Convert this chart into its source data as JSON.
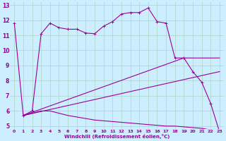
{
  "xlabel": "Windchill (Refroidissement éolien,°C)",
  "bg_color": "#cceeff",
  "grid_color": "#aaddcc",
  "line_color": "#990099",
  "xlim": [
    -0.5,
    23.5
  ],
  "ylim": [
    4.8,
    13.2
  ],
  "xticks": [
    0,
    1,
    2,
    3,
    4,
    5,
    6,
    7,
    8,
    9,
    10,
    11,
    12,
    13,
    14,
    15,
    16,
    17,
    18,
    19,
    20,
    21,
    22,
    23
  ],
  "yticks": [
    5,
    6,
    7,
    8,
    9,
    10,
    11,
    12,
    13
  ],
  "line1_x": [
    0,
    1,
    2,
    3,
    4,
    5,
    6,
    7,
    8,
    9,
    10,
    11,
    12,
    13,
    14,
    15,
    16,
    17,
    18,
    19,
    20,
    21,
    22,
    23
  ],
  "line1_y": [
    11.8,
    5.7,
    6.0,
    11.1,
    11.8,
    11.5,
    11.4,
    11.4,
    11.15,
    11.1,
    11.6,
    11.9,
    12.4,
    12.5,
    12.5,
    12.8,
    11.9,
    11.8,
    9.5,
    9.5,
    8.6,
    7.9,
    6.5,
    4.6
  ],
  "line2_x": [
    1,
    2,
    3,
    4,
    5,
    6,
    7,
    8,
    9,
    10,
    11,
    12,
    13,
    14,
    15,
    16,
    17,
    18,
    19,
    20,
    21,
    22,
    23
  ],
  "line2_y": [
    5.7,
    5.85,
    6.0,
    6.0,
    5.85,
    5.7,
    5.6,
    5.5,
    5.4,
    5.35,
    5.3,
    5.25,
    5.2,
    5.15,
    5.1,
    5.05,
    5.0,
    5.0,
    4.95,
    4.9,
    4.85,
    4.75,
    4.6
  ],
  "line3_x": [
    1,
    23
  ],
  "line3_y": [
    5.7,
    8.6
  ],
  "line4_x": [
    1,
    19,
    23
  ],
  "line4_y": [
    5.7,
    9.5,
    9.5
  ]
}
